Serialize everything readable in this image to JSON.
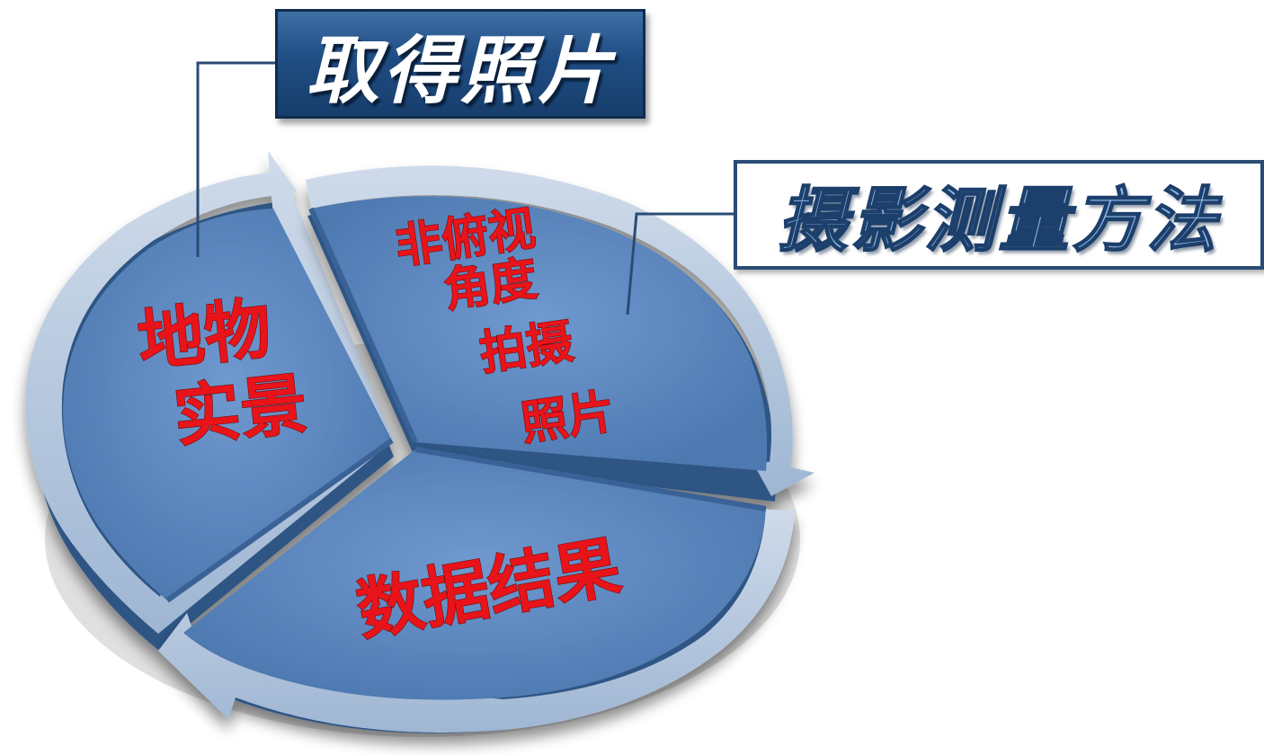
{
  "title_box": {
    "text": "取得照片"
  },
  "method_box": {
    "text": "摄影测量方法"
  },
  "segments": {
    "left": {
      "line1": "地物",
      "line2": "实景"
    },
    "right": {
      "line1": "非俯视",
      "line2": "角度",
      "line3": "拍摄",
      "line4": "照片"
    },
    "bottom": {
      "line1": "数据结果"
    }
  },
  "colors": {
    "segment_fill": "#5a86bf",
    "segment_side": "#2f5484",
    "arrow_fill": "#b3c7df",
    "label_red": "#e8141a",
    "title_bg": "#1f4d83",
    "connector": "#2a4c74"
  }
}
